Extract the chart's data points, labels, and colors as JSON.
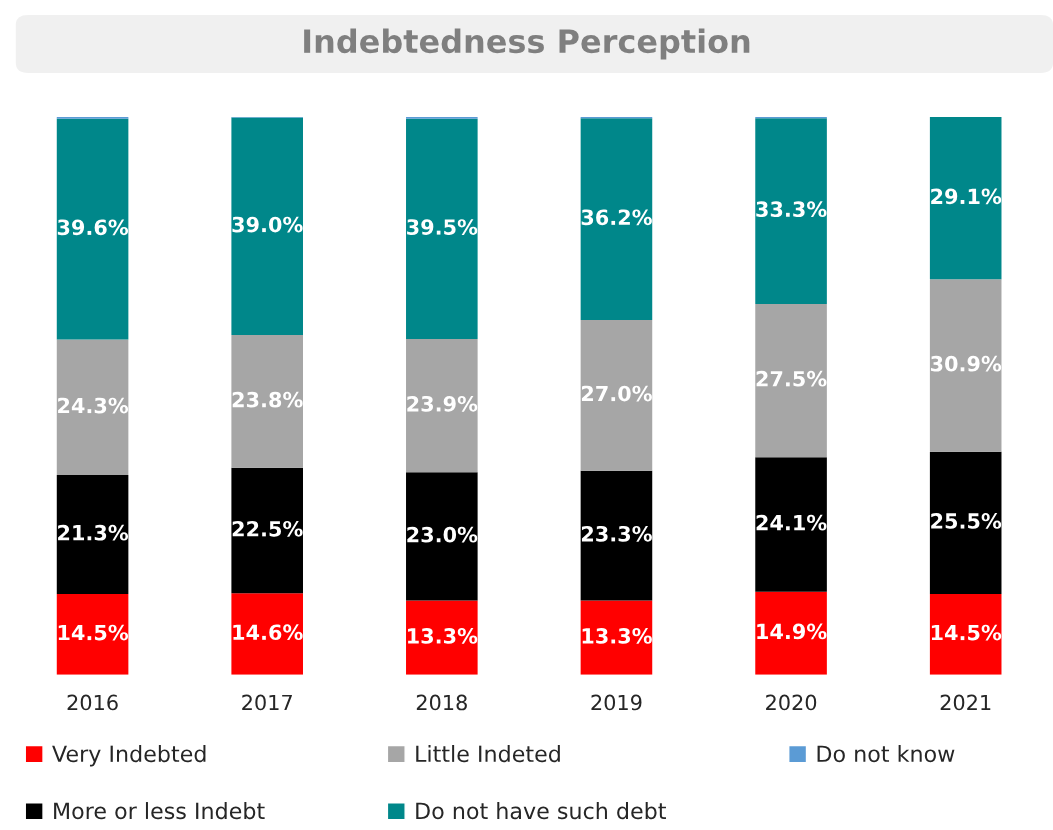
{
  "chart_data": {
    "type": "bar",
    "title": "Indebtedness Perception",
    "stacked": true,
    "categories": [
      "2016",
      "2017",
      "2018",
      "2019",
      "2020",
      "2021"
    ],
    "series": [
      {
        "name": "Very Indebted",
        "color": "#ff0000",
        "values": [
          14.5,
          14.6,
          13.3,
          13.3,
          14.9,
          14.5
        ],
        "value_labels": [
          "14.5%",
          "14.6%",
          "13.3%",
          "13.3%",
          "14.9%",
          "14.5%"
        ]
      },
      {
        "name": "More or less Indebt",
        "color": "#000000",
        "values": [
          21.3,
          22.5,
          23.0,
          23.3,
          24.1,
          25.5
        ],
        "value_labels": [
          "21.3%",
          "22.5%",
          "23.0%",
          "23.3%",
          "24.1%",
          "25.5%"
        ]
      },
      {
        "name": "Little Indeted",
        "color": "#a6a6a6",
        "values": [
          24.3,
          23.8,
          23.9,
          27.0,
          27.5,
          30.9
        ],
        "value_labels": [
          "24.3%",
          "23.8%",
          "23.9%",
          "27.0%",
          "27.5%",
          "30.9%"
        ]
      },
      {
        "name": "Do not have such debt",
        "color": "#00878a",
        "values": [
          39.6,
          39.0,
          39.5,
          36.2,
          33.3,
          29.1
        ],
        "value_labels": [
          "39.6%",
          "39.0%",
          "39.5%",
          "36.2%",
          "33.3%",
          "29.1%"
        ]
      },
      {
        "name": "Do not know",
        "color": "#5b9bd5",
        "values": [
          0.3,
          0.1,
          0.3,
          0.2,
          0.2,
          0.0
        ],
        "value_labels": [
          null,
          null,
          null,
          null,
          null,
          null
        ]
      }
    ],
    "legend": "bottom",
    "grid": false
  }
}
